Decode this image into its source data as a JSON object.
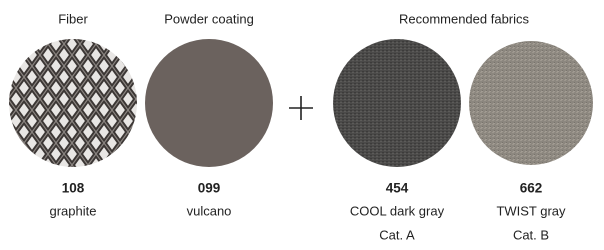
{
  "headings": [
    "Fiber",
    "Powder coating",
    "Recommended fabrics"
  ],
  "swatches": [
    {
      "code": "108",
      "name": "graphite"
    },
    {
      "code": "099",
      "name": "vulcano"
    },
    {
      "code": "454",
      "name": "COOL dark gray",
      "category": "Cat. A"
    },
    {
      "code": "662",
      "name": "TWIST gray",
      "category": "Cat. B"
    }
  ]
}
